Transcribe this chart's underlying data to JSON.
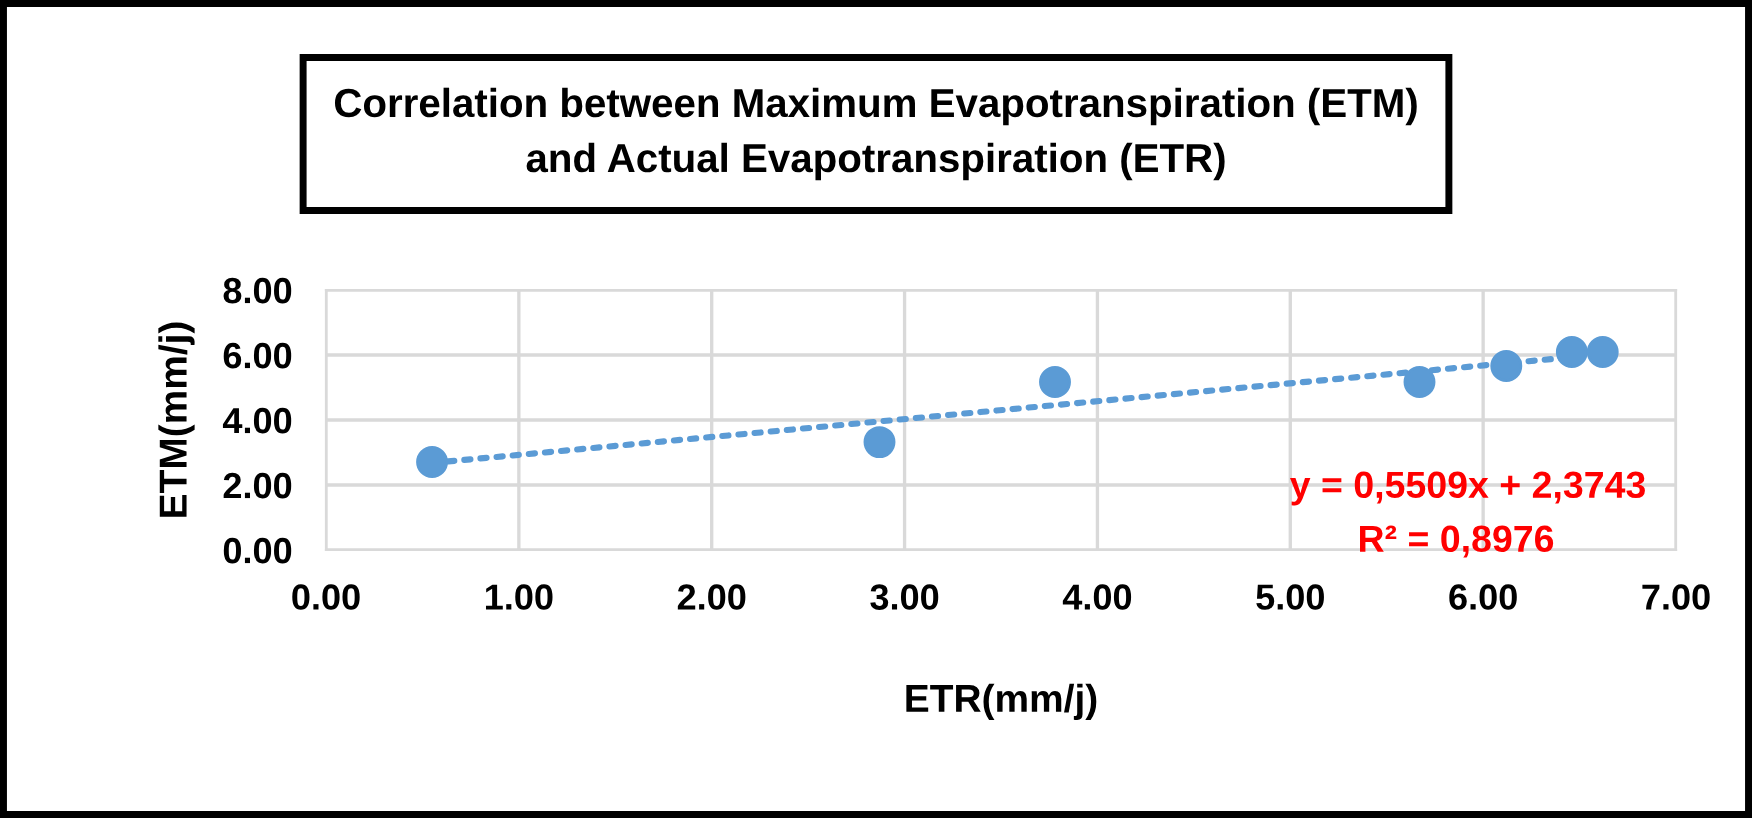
{
  "chart_data": {
    "type": "scatter",
    "title": "Correlation between Maximum Evapotranspiration (ETM)\nand Actual Evapotranspiration (ETR)",
    "xlabel": "ETR(mm/j)",
    "ylabel": "ETM(mm/j)",
    "series": [
      {
        "color": "#5b9bd5",
        "marker": "circle",
        "x": [
          0.55,
          2.87,
          3.78,
          5.67,
          6.12,
          6.46,
          6.62
        ],
        "values": [
          2.71,
          3.32,
          5.17,
          5.17,
          5.66,
          6.09,
          6.09
        ]
      },
      {
        "type": "line",
        "color": "#5b9bd5",
        "line_style": "dotted",
        "x": [
          0.55,
          6.62
        ],
        "values": [
          2.68,
          6.02
        ]
      }
    ],
    "annotations": [
      "y = 0,5509x + 2,3743",
      "R² = 0,8976"
    ],
    "xlim": [
      0,
      7
    ],
    "ylim": [
      0,
      8
    ],
    "xticks": [
      {
        "value": 0,
        "label": "0.00"
      },
      {
        "value": 1,
        "label": "1.00"
      },
      {
        "value": 2,
        "label": "2.00"
      },
      {
        "value": 3,
        "label": "3.00"
      },
      {
        "value": 4,
        "label": "4.00"
      },
      {
        "value": 5,
        "label": "5.00"
      },
      {
        "value": 6,
        "label": "6.00"
      },
      {
        "value": 7,
        "label": "7.00"
      }
    ],
    "yticks": [
      {
        "value": 0,
        "label": "0.00"
      },
      {
        "value": 2,
        "label": "2.00"
      },
      {
        "value": 4,
        "label": "4.00"
      },
      {
        "value": 6,
        "label": "6.00"
      },
      {
        "value": 8,
        "label": "8.00"
      }
    ],
    "grid": true,
    "legend": false
  }
}
